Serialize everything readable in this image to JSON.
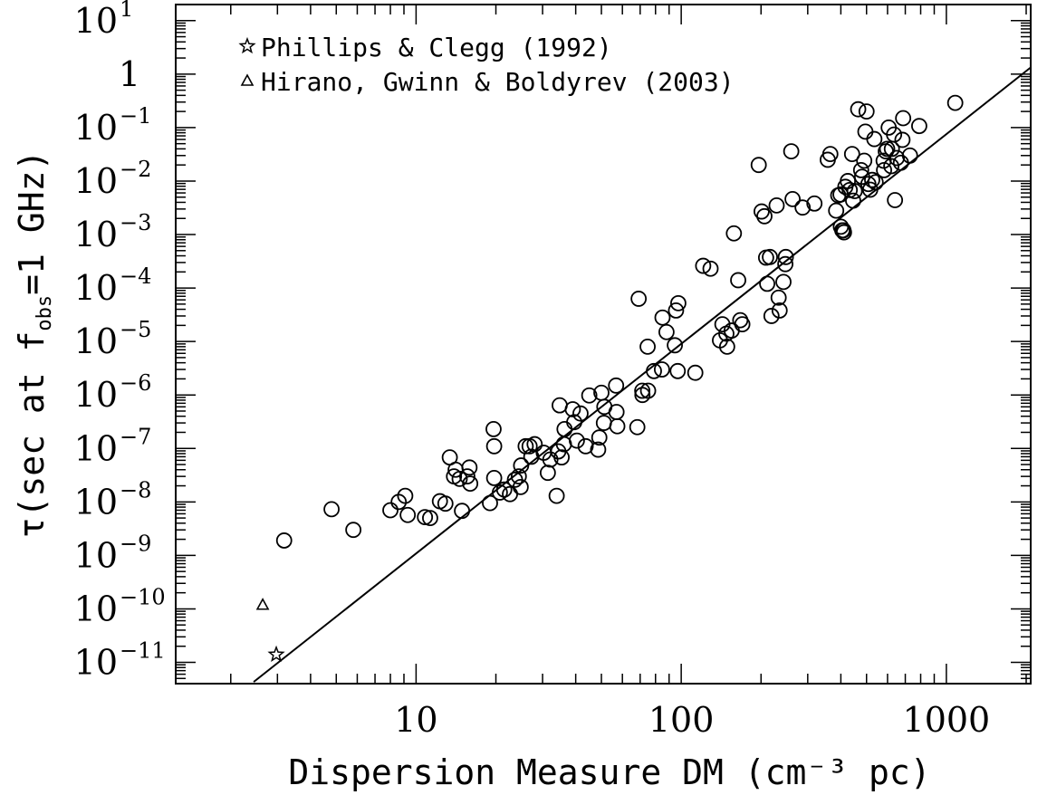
{
  "chart_data": {
    "type": "scatter",
    "xlabel": "Dispersion Measure DM (cm⁻³ pc)",
    "ylabel": "τ(sec at f",
    "ylabel_sub": "obs",
    "ylabel_tail": "=1 GHz)",
    "xscale": "log",
    "yscale": "log",
    "xlim": [
      1.24,
      2080
    ],
    "ylim": [
      4e-12,
      20
    ],
    "x_ticks": [
      {
        "value": 10,
        "label": "10"
      },
      {
        "value": 100,
        "label": "100"
      },
      {
        "value": 1000,
        "label": "1000"
      }
    ],
    "y_ticks": [
      {
        "value": 10,
        "label": "10",
        "exp": "1"
      },
      {
        "value": 1,
        "label": "1",
        "exp": ""
      },
      {
        "value": 0.1,
        "label": "10",
        "exp": "−1"
      },
      {
        "value": 0.01,
        "label": "10",
        "exp": "−2"
      },
      {
        "value": 0.001,
        "label": "10",
        "exp": "−3"
      },
      {
        "value": 0.0001,
        "label": "10",
        "exp": "−4"
      },
      {
        "value": 1e-05,
        "label": "10",
        "exp": "−5"
      },
      {
        "value": 1e-06,
        "label": "10",
        "exp": "−6"
      },
      {
        "value": 1e-07,
        "label": "10",
        "exp": "−7"
      },
      {
        "value": 1e-08,
        "label": "10",
        "exp": "−8"
      },
      {
        "value": 1e-09,
        "label": "10",
        "exp": "−9"
      },
      {
        "value": 1e-10,
        "label": "10",
        "exp": "−10"
      },
      {
        "value": 1e-11,
        "label": "10",
        "exp": "−11"
      }
    ],
    "grid": false,
    "legend_position": "top-left",
    "series": [
      {
        "name": "Phillips & Clegg (1992)",
        "marker": "star",
        "points": [
          [
            2.97,
            1.4e-11
          ]
        ]
      },
      {
        "name": "Hirano, Gwinn & Boldyrev (2003)",
        "marker": "triangle",
        "points": [
          [
            2.64,
            1.2e-10
          ]
        ]
      },
      {
        "name": "",
        "marker": "circle",
        "points": [
          [
            3.18,
            1.9e-09
          ],
          [
            4.8,
            7.3e-09
          ],
          [
            5.8,
            3e-09
          ],
          [
            8.0,
            7e-09
          ],
          [
            8.6,
            1e-08
          ],
          [
            9.1,
            1.3e-08
          ],
          [
            9.3,
            5.7e-09
          ],
          [
            10.8,
            5.2e-09
          ],
          [
            11.3,
            5e-09
          ],
          [
            12.3,
            1.03e-08
          ],
          [
            12.9,
            9.3e-09
          ],
          [
            13.4,
            6.8e-08
          ],
          [
            13.9,
            3e-08
          ],
          [
            14.1,
            4e-08
          ],
          [
            14.6,
            2.7e-08
          ],
          [
            14.9,
            6.8e-09
          ],
          [
            15.6,
            3e-08
          ],
          [
            15.9,
            4.4e-08
          ],
          [
            16.0,
            2.2e-08
          ],
          [
            19.0,
            9.5e-09
          ],
          [
            19.6,
            2.3e-07
          ],
          [
            19.7,
            1.1e-07
          ],
          [
            19.7,
            2.8e-08
          ],
          [
            20.7,
            1.5e-08
          ],
          [
            21.5,
            1.7e-08
          ],
          [
            22.6,
            1.4e-08
          ],
          [
            23.6,
            2.6e-08
          ],
          [
            24.4,
            3e-08
          ],
          [
            24.9,
            4.8e-08
          ],
          [
            24.8,
            1.9e-08
          ],
          [
            25.9,
            1.1e-07
          ],
          [
            26.8,
            1.1e-07
          ],
          [
            27.2,
            7e-08
          ],
          [
            28.0,
            1.2e-07
          ],
          [
            30.3,
            8.3e-08
          ],
          [
            31.4,
            3.5e-08
          ],
          [
            32.1,
            6.2e-08
          ],
          [
            33.9,
            1.3e-08
          ],
          [
            34.4,
            8.8e-08
          ],
          [
            34.8,
            6.4e-07
          ],
          [
            35.4,
            6.8e-08
          ],
          [
            36.1,
            1.2e-07
          ],
          [
            36.3,
            2.3e-07
          ],
          [
            39.0,
            5.4e-07
          ],
          [
            39.5,
            3.1e-07
          ],
          [
            40.4,
            1.4e-07
          ],
          [
            41.7,
            4.5e-07
          ],
          [
            43.6,
            1.1e-07
          ],
          [
            45.0,
            9.8e-07
          ],
          [
            48.6,
            9.5e-08
          ],
          [
            49.1,
            1.6e-07
          ],
          [
            50.0,
            1.1e-06
          ],
          [
            51.1,
            3e-07
          ],
          [
            51.3,
            6e-07
          ],
          [
            56.8,
            1.5e-06
          ],
          [
            57.0,
            4.8e-07
          ],
          [
            57.4,
            2.6e-07
          ],
          [
            68.3,
            2.5e-07
          ],
          [
            69.1,
            6.3e-05
          ],
          [
            71.3,
            1.2e-06
          ],
          [
            71.4,
            1e-06
          ],
          [
            74.7,
            8e-06
          ],
          [
            75.0,
            1.2e-06
          ],
          [
            78.9,
            2.8e-06
          ],
          [
            84.6,
            3e-06
          ],
          [
            85.0,
            2.8e-05
          ],
          [
            88.0,
            1.5e-05
          ],
          [
            94.6,
            8.5e-06
          ],
          [
            95.6,
            3.8e-05
          ],
          [
            97.0,
            2.8e-06
          ],
          [
            97.5,
            5.2e-05
          ],
          [
            113.0,
            2.6e-06
          ],
          [
            121.0,
            0.00026
          ],
          [
            129.0,
            0.00023
          ],
          [
            140.0,
            1.05e-05
          ],
          [
            143.0,
            2.1e-05
          ],
          [
            148.0,
            1.4e-05
          ],
          [
            149.0,
            8e-06
          ],
          [
            155.0,
            1.6e-05
          ],
          [
            158.0,
            0.00105
          ],
          [
            164.0,
            0.00014
          ],
          [
            167.0,
            2.5e-05
          ],
          [
            170.0,
            2.1e-05
          ],
          [
            196.0,
            0.02
          ],
          [
            201.0,
            0.0027
          ],
          [
            206.0,
            0.0022
          ],
          [
            209.0,
            0.00037
          ],
          [
            211.0,
            0.00012
          ],
          [
            216.0,
            0.00038
          ],
          [
            219.0,
            3e-05
          ],
          [
            229.0,
            0.0035
          ],
          [
            233.0,
            6.6e-05
          ],
          [
            235.0,
            3.8e-05
          ],
          [
            243.0,
            0.00013
          ],
          [
            247.0,
            0.00028
          ],
          [
            248.0,
            0.00038
          ],
          [
            260.0,
            0.036
          ],
          [
            263.0,
            0.0046
          ],
          [
            287.0,
            0.0032
          ],
          [
            318.0,
            0.0038
          ],
          [
            357.0,
            0.025
          ],
          [
            365.0,
            0.032
          ],
          [
            384.0,
            0.0028
          ],
          [
            391.0,
            0.0054
          ],
          [
            399.0,
            0.0056
          ],
          [
            400.0,
            0.0014
          ],
          [
            405.0,
            0.0012
          ],
          [
            409.0,
            0.0012
          ],
          [
            411.0,
            0.0011
          ],
          [
            416.0,
            0.0078
          ],
          [
            425.0,
            0.01
          ],
          [
            432.0,
            0.0068
          ],
          [
            441.0,
            0.032
          ],
          [
            445.0,
            0.0043
          ],
          [
            451.0,
            0.0065
          ],
          [
            465.0,
            0.22
          ],
          [
            477.0,
            0.016
          ],
          [
            481.0,
            0.012
          ],
          [
            490.0,
            0.024
          ],
          [
            495.0,
            0.084
          ],
          [
            500.0,
            0.2
          ],
          [
            508.0,
            0.0088
          ],
          [
            516.0,
            0.0069
          ],
          [
            525.0,
            0.0105
          ],
          [
            535.0,
            0.061
          ],
          [
            541.0,
            0.0095
          ],
          [
            580.0,
            0.024
          ],
          [
            582.0,
            0.016
          ],
          [
            591.0,
            0.036
          ],
          [
            598.0,
            0.04
          ],
          [
            606.0,
            0.1
          ],
          [
            620.0,
            0.019
          ],
          [
            623.0,
            0.04
          ],
          [
            635.0,
            0.074
          ],
          [
            640.0,
            0.0044
          ],
          [
            650.0,
            0.027
          ],
          [
            674.0,
            0.022
          ],
          [
            683.0,
            0.059
          ],
          [
            687.0,
            0.15
          ],
          [
            729.0,
            0.03
          ],
          [
            790.0,
            0.107
          ],
          [
            1080.0,
            0.29
          ]
        ]
      }
    ],
    "fit_line": {
      "points": [
        [
          2.44,
          4.3e-12
        ],
        [
          2080,
          1.33
        ]
      ]
    }
  }
}
